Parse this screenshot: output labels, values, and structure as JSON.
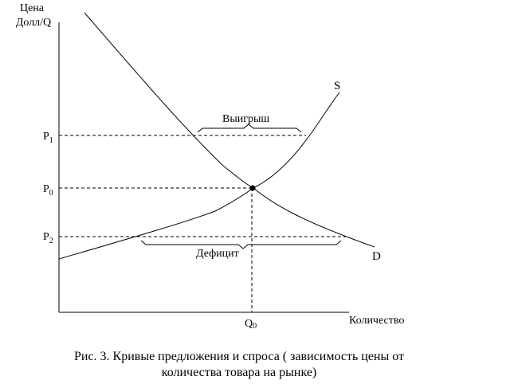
{
  "axes": {
    "y_label_line1": "Цена",
    "y_label_line2": "Долл/Q",
    "x_label": "Количество"
  },
  "prices": {
    "p1": {
      "main": "P",
      "sub": "1"
    },
    "p0": {
      "main": "P",
      "sub": "0"
    },
    "p2": {
      "main": "P",
      "sub": "2"
    }
  },
  "quantity": {
    "q0": {
      "main": "Q",
      "sub": "0"
    }
  },
  "curves": {
    "supply_label": "S",
    "demand_label": "D"
  },
  "annotations": {
    "surplus": "Выигрыш",
    "deficit": "Дефицит"
  },
  "caption": {
    "line1": "Рис. 3. Кривые предложения и спроса ( зависимость цены от",
    "line2": "количества товара на рынке)"
  }
}
